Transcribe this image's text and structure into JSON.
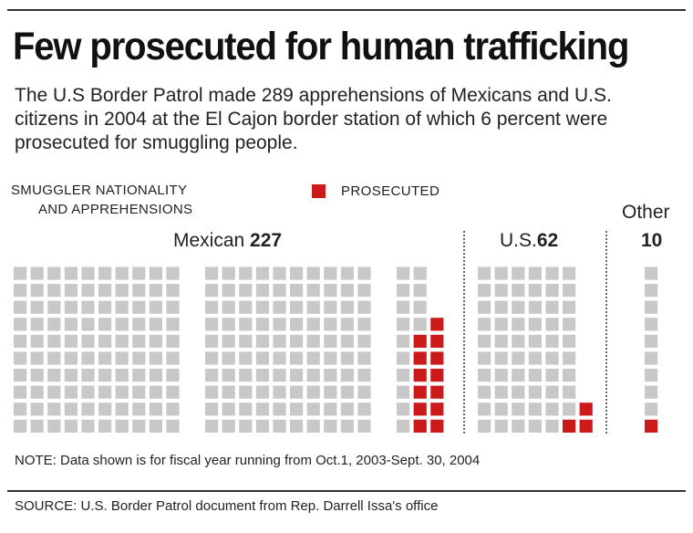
{
  "header": {
    "title": "Few prosecuted for human trafficking",
    "subtitle": "The U.S Border Patrol made 289 apprehensions of Mexicans and U.S. citizens in 2004 at the El Cajon border station of which 6 percent were prosecuted for smuggling people."
  },
  "legend": {
    "heading_line1": "SMUGGLER NATIONALITY",
    "heading_line2": "AND APPREHENSIONS",
    "prosecuted_label": "PROSECUTED"
  },
  "colors": {
    "apprehended": "#c8c8c8",
    "prosecuted": "#cc1a1a"
  },
  "chart_data": {
    "type": "waffle",
    "title": "Few prosecuted for human trafficking",
    "unit": "one square = one apprehension",
    "groups": [
      {
        "name": "Mexican",
        "count_label": "227",
        "apprehensions": 227,
        "prosecuted": 13
      },
      {
        "name": "U.S.",
        "count_label": "62",
        "apprehensions": 62,
        "prosecuted": 3
      },
      {
        "name": "Other",
        "count_label": "10",
        "apprehensions": 10,
        "prosecuted": 1
      }
    ]
  },
  "labels": {
    "mexican_name": "Mexican ",
    "mexican_count": "227",
    "us_name": "U.S.",
    "us_count": "62",
    "other_name": "Other",
    "other_count": "10"
  },
  "footer": {
    "note": "NOTE: Data shown is for fiscal year running from Oct.1, 2003-Sept. 30, 2004",
    "source": "SOURCE: U.S. Border Patrol document from Rep. Darrell Issa's office"
  }
}
